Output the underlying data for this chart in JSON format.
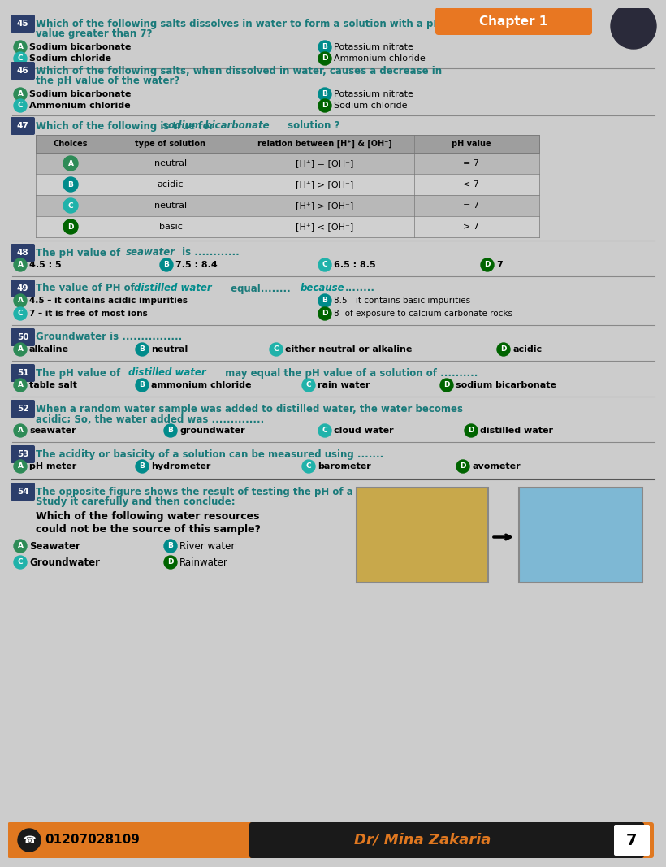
{
  "bg_color": "#cccccc",
  "header_orange": "#e87722",
  "teal": "#1a7a7a",
  "dark_teal": "#006666",
  "bold_teal": "#008b8b",
  "circle_a": "#2e8b57",
  "circle_b": "#008b8b",
  "circle_c": "#20b2aa",
  "circle_d": "#006400",
  "black": "#000000",
  "white": "#ffffff",
  "badge_color": "#2c3e6b",
  "table_header_bg": "#9e9e9e",
  "table_row1": "#b8b8b8",
  "table_row2": "#d0d0d0",
  "sep_color": "#888888",
  "footer_orange": "#e07820",
  "footer_dark": "#1a1a1a",
  "q45_text1": "Which of the following salts dissolves in water to form a solution with a pH",
  "q45_text2": "value greater than 7?",
  "q45_a": "Sodium bicarbonate",
  "q45_b": "Potassium nitrate",
  "q45_c": "Sodium chloride",
  "q45_d": "Ammonium chloride",
  "q46_text1": "Which of the following salts, when dissolved in water, causes a decrease in",
  "q46_text2": "the pH value of the water?",
  "q46_a": "Sodium bicarbonate",
  "q46_b": "Potassium nitrate",
  "q46_c": "Ammonium chloride",
  "q46_d": "Sodium chloride",
  "q47_text": "Which of the following is true for ",
  "q47_bold": "sodium bicarbonate",
  "q47_text2": " solution ?",
  "q47_type": [
    "neutral",
    "acidic",
    "neutral",
    "basic"
  ],
  "q47_relation": [
    "[H⁺] = [OH⁻]",
    "[H⁺] > [OH⁻]",
    "[H⁺] > [OH⁻]",
    "[H⁺] < [OH⁻]"
  ],
  "q47_ph": [
    "= 7",
    "< 7",
    "= 7",
    "> 7"
  ],
  "q48_text1": "The pH value of ",
  "q48_bold": "seawater",
  "q48_text2": " is ............",
  "q48_a": "4.5 : 5",
  "q48_b": "7.5 : 8.4",
  "q48_c": "6.5 : 8.5",
  "q48_d": "7",
  "q49_text1": "The value of PH of ",
  "q49_bold": "distilled water",
  "q49_text2": " equal........",
  "q49_bold2": "because",
  "q49_text3": "........",
  "q49_a": "4.5 – it contains acidic impurities",
  "q49_b": "8.5 - it contains basic impurities",
  "q49_c": "7 – it is free of most ions",
  "q49_d": "8- of exposure to calcium carbonate rocks",
  "q50_text": "Groundwater is ................",
  "q50_a": "alkaline",
  "q50_b": "neutral",
  "q50_c": "either neutral or alkaline",
  "q50_d": "acidic",
  "q51_text1": "The pH value of ",
  "q51_bold": "distilled water",
  "q51_text2": " may equal the pH value of a solution of ..........",
  "q51_a": "table salt",
  "q51_b": "ammonium chloride",
  "q51_c": "rain water",
  "q51_d": "sodium bicarbonate",
  "q52_text1": "When a random water sample was added to distilled water, the water becomes",
  "q52_text2": "acidic; So, the water added was ..............",
  "q52_a": "seawater",
  "q52_b": "groundwater",
  "q52_c": "cloud water",
  "q52_d": "distilled water",
  "q53_text": "The acidity or basicity of a solution can be measured using .......",
  "q53_a": "pH meter",
  "q53_b": "hydrometer",
  "q53_c": "barometer",
  "q53_d": "avometer",
  "q54_text1": "The opposite figure shows the result of testing the pH of a water sample.",
  "q54_text2": "Study it carefully and then conclude:",
  "q54_sub1": "Which of the following water resources",
  "q54_sub2": "could not be the source of this sample?",
  "q54_a": "Seawater",
  "q54_b": "River water",
  "q54_c": "Groundwater",
  "q54_d": "Rainwater",
  "footer_phone": "01207028109",
  "footer_name": "Dr/ Mina Zakaria",
  "footer_page": "7"
}
